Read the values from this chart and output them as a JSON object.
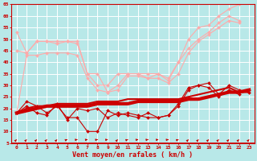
{
  "xlabel": "Vent moyen/en rafales ( km/h )",
  "background_color": "#b8e8e8",
  "grid_color": "#ffffff",
  "ylim": [
    5,
    65
  ],
  "yticks": [
    5,
    10,
    15,
    20,
    25,
    30,
    35,
    40,
    45,
    50,
    55,
    60,
    65
  ],
  "series": [
    {
      "color": "#ffaaaa",
      "linewidth": 0.8,
      "marker": "D",
      "markersize": 2,
      "data": [
        53,
        44,
        49,
        49,
        48,
        49,
        49,
        35,
        35,
        27,
        30,
        35,
        35,
        33,
        35,
        32,
        40,
        50,
        55,
        56,
        60,
        63,
        65,
        null
      ]
    },
    {
      "color": "#ffaaaa",
      "linewidth": 0.8,
      "marker": "D",
      "markersize": 2,
      "data": [
        45,
        44,
        49,
        49,
        49,
        49,
        48,
        35,
        30,
        30,
        35,
        35,
        35,
        35,
        35,
        33,
        40,
        46,
        50,
        53,
        57,
        60,
        58,
        null
      ]
    },
    {
      "color": "#ffaaaa",
      "linewidth": 0.8,
      "marker": "D",
      "markersize": 2,
      "data": [
        18,
        43,
        43,
        44,
        44,
        44,
        43,
        33,
        28,
        27,
        28,
        34,
        34,
        33,
        33,
        31,
        35,
        44,
        49,
        52,
        55,
        58,
        57,
        null
      ]
    },
    {
      "color": "#cc0000",
      "linewidth": 3.0,
      "marker": null,
      "data": [
        18,
        19,
        20,
        21,
        21,
        21,
        21,
        21,
        22,
        22,
        22,
        22,
        23,
        23,
        23,
        23,
        23,
        24,
        24,
        25,
        26,
        27,
        27,
        28
      ]
    },
    {
      "color": "#cc0000",
      "linewidth": 1.5,
      "marker": null,
      "data": [
        18,
        20,
        21,
        21,
        22,
        22,
        22,
        22,
        23,
        23,
        23,
        24,
        24,
        24,
        24,
        24,
        24,
        25,
        26,
        27,
        28,
        29,
        27,
        27
      ]
    },
    {
      "color": "#cc0000",
      "linewidth": 0.8,
      "marker": "D",
      "markersize": 2,
      "data": [
        18,
        23,
        21,
        18,
        21,
        16,
        16,
        10,
        10,
        19,
        17,
        18,
        17,
        16,
        16,
        17,
        22,
        29,
        30,
        31,
        26,
        30,
        28,
        27
      ]
    },
    {
      "color": "#cc0000",
      "linewidth": 0.8,
      "marker": "D",
      "markersize": 2,
      "data": [
        18,
        21,
        18,
        17,
        22,
        15,
        20,
        19,
        20,
        16,
        18,
        17,
        16,
        18,
        16,
        17,
        21,
        28,
        30,
        29,
        25,
        28,
        26,
        null
      ]
    }
  ],
  "arrows": {
    "y_data": 6.5,
    "color": "#cc0000",
    "angles_deg": [
      45,
      45,
      45,
      45,
      45,
      20,
      10,
      10,
      10,
      10,
      45,
      20,
      10,
      10,
      10,
      10,
      20,
      45,
      45,
      45,
      45,
      45,
      45,
      45
    ]
  }
}
